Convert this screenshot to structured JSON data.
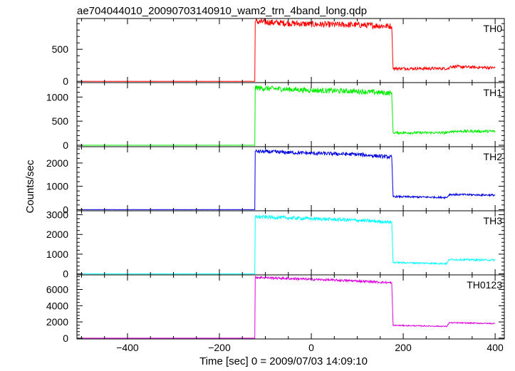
{
  "title": "ae704044010_20090703140910_wam2_trn_4band_long.qdp",
  "xlabel": "Time [sec] 0 = 2009/07/03 14:09:10",
  "ylabel": "Counts/sec",
  "chart_data": {
    "type": "line",
    "title": "ae704044010_20090703140910_wam2_trn_4band_long.qdp",
    "xlabel": "Time [sec] 0 = 2009/07/03 14:09:10",
    "ylabel": "Counts/sec",
    "xlim": [
      -510,
      420
    ],
    "x_ticks": [
      -400,
      -200,
      0,
      200,
      400
    ],
    "grid": false,
    "panels": [
      {
        "name": "TH0",
        "color": "#ff0000",
        "ylim": [
          -20,
          980
        ],
        "y_ticks": [
          0,
          500
        ],
        "points": [
          [
            -500,
            0
          ],
          [
            -123,
            0
          ],
          [
            -122,
            930
          ],
          [
            0,
            890
          ],
          [
            100,
            880
          ],
          [
            175,
            860
          ],
          [
            178,
            200
          ],
          [
            300,
            200
          ],
          [
            302,
            230
          ],
          [
            400,
            210
          ]
        ]
      },
      {
        "name": "TH1",
        "color": "#00ee00",
        "ylim": [
          -30,
          1300
        ],
        "y_ticks": [
          0,
          500,
          1000
        ],
        "points": [
          [
            -500,
            0
          ],
          [
            -123,
            0
          ],
          [
            -122,
            1190
          ],
          [
            0,
            1140
          ],
          [
            100,
            1120
          ],
          [
            175,
            1080
          ],
          [
            178,
            260
          ],
          [
            300,
            260
          ],
          [
            302,
            290
          ],
          [
            400,
            290
          ]
        ]
      },
      {
        "name": "TH2",
        "color": "#0000dd",
        "ylim": [
          -50,
          2700
        ],
        "y_ticks": [
          0,
          1000,
          2000
        ],
        "points": [
          [
            -500,
            0
          ],
          [
            -123,
            0
          ],
          [
            -122,
            2500
          ],
          [
            0,
            2420
          ],
          [
            100,
            2370
          ],
          [
            175,
            2250
          ],
          [
            178,
            560
          ],
          [
            295,
            520
          ],
          [
            300,
            650
          ],
          [
            400,
            620
          ]
        ]
      },
      {
        "name": "TH3",
        "color": "#00ffff",
        "ylim": [
          -50,
          3200
        ],
        "y_ticks": [
          0,
          1000,
          2000,
          3000
        ],
        "points": [
          [
            -500,
            0
          ],
          [
            -123,
            0
          ],
          [
            -122,
            2900
          ],
          [
            0,
            2800
          ],
          [
            100,
            2720
          ],
          [
            175,
            2620
          ],
          [
            178,
            580
          ],
          [
            295,
            520
          ],
          [
            300,
            730
          ],
          [
            400,
            700
          ]
        ]
      },
      {
        "name": "TH0123",
        "color": "#dd00dd",
        "ylim": [
          -100,
          7800
        ],
        "y_ticks": [
          0,
          2000,
          4000,
          6000
        ],
        "points": [
          [
            -500,
            0
          ],
          [
            -123,
            0
          ],
          [
            -122,
            7500
          ],
          [
            0,
            7250
          ],
          [
            100,
            7050
          ],
          [
            175,
            6820
          ],
          [
            178,
            1580
          ],
          [
            295,
            1450
          ],
          [
            300,
            1900
          ],
          [
            400,
            1800
          ]
        ]
      }
    ]
  }
}
